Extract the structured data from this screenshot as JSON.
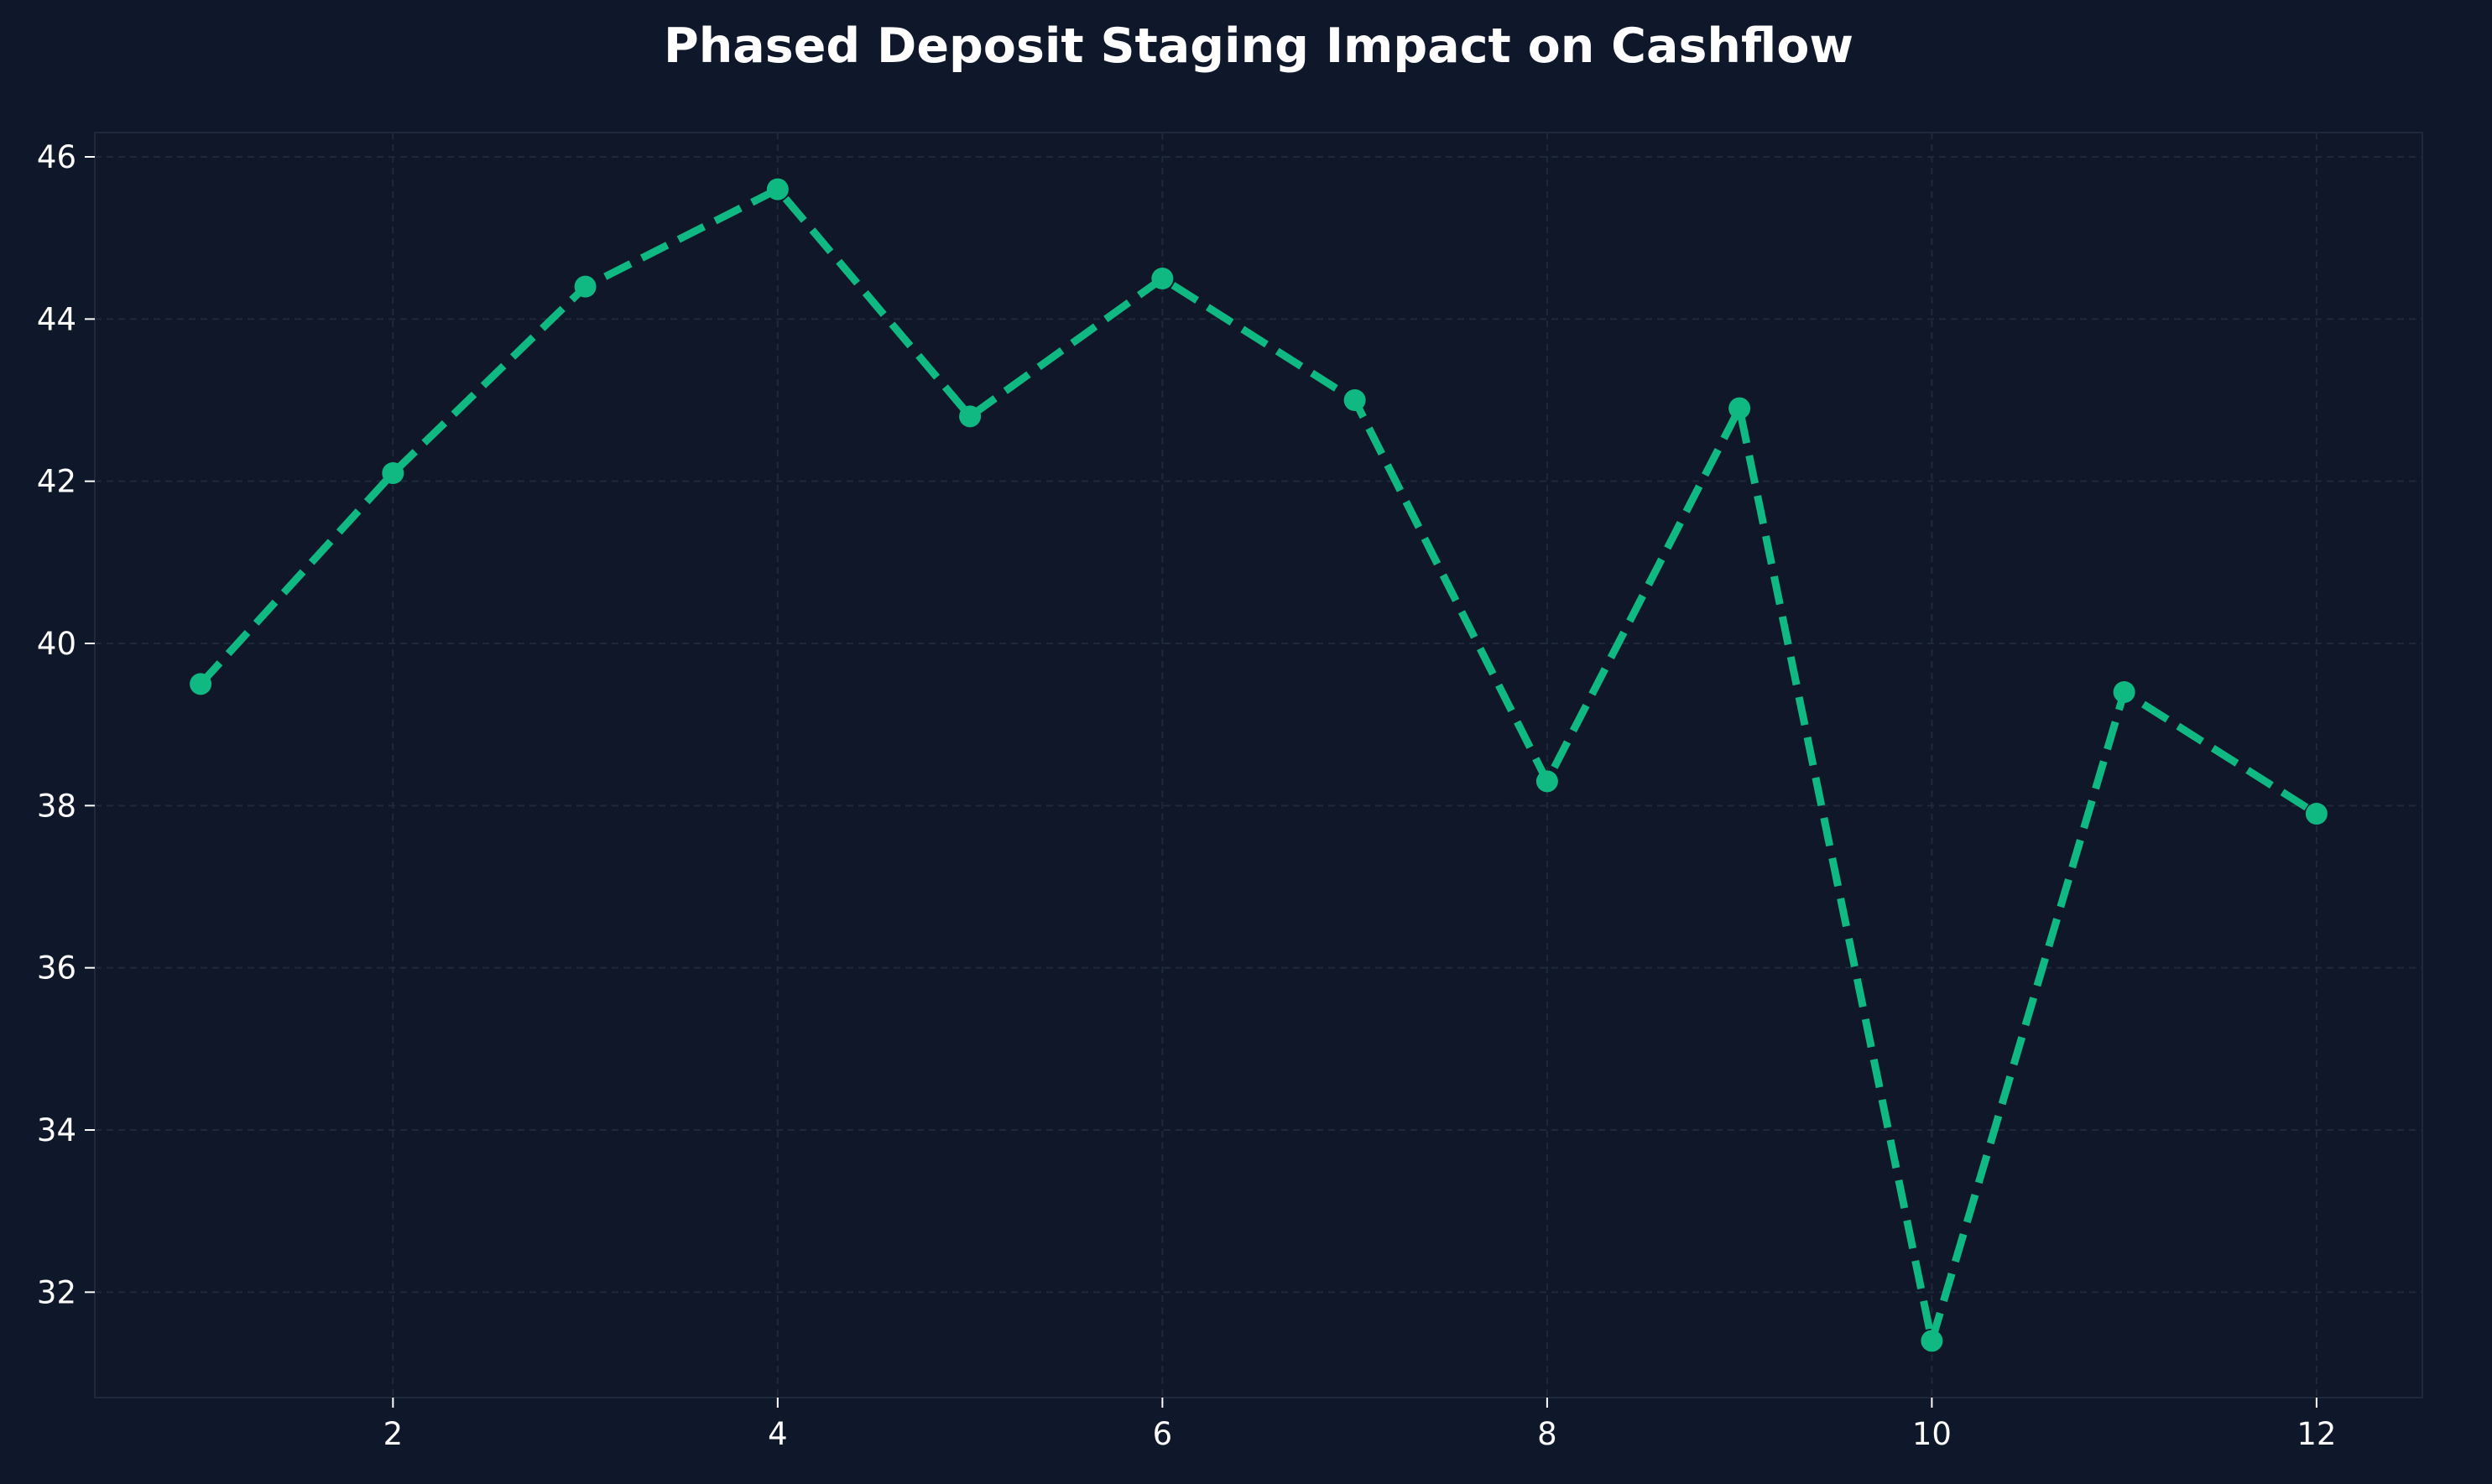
{
  "chart_data": {
    "type": "line",
    "title": "Phased Deposit Staging Impact on Cashflow",
    "xlabel": "",
    "ylabel": "",
    "x": [
      1,
      2,
      3,
      4,
      5,
      6,
      7,
      8,
      9,
      10,
      11,
      12
    ],
    "series": [
      {
        "values": [
          39.5,
          42.1,
          44.4,
          45.6,
          42.8,
          44.5,
          43.0,
          38.3,
          42.9,
          31.4,
          39.4,
          37.9
        ],
        "color": "#10b981",
        "line_style": "dashed",
        "marker": "circle"
      }
    ],
    "xlim": [
      0.45,
      12.55
    ],
    "ylim": [
      30.7,
      46.3
    ],
    "xticks": [
      2,
      4,
      6,
      8,
      10,
      12
    ],
    "xtick_labels": [
      "2",
      "4",
      "6",
      "8",
      "10",
      "12"
    ],
    "yticks": [
      32,
      34,
      36,
      38,
      40,
      42,
      44,
      46
    ],
    "ytick_labels": [
      "32",
      "34",
      "36",
      "38",
      "40",
      "42",
      "44",
      "46"
    ],
    "grid": true,
    "legend": false,
    "colors": {
      "background": "#0f172a",
      "plot_background": "#101729",
      "axes_edge": "#1e293b",
      "grid": "#1e293b",
      "text": "#ffffff",
      "line": "#10b981"
    }
  }
}
